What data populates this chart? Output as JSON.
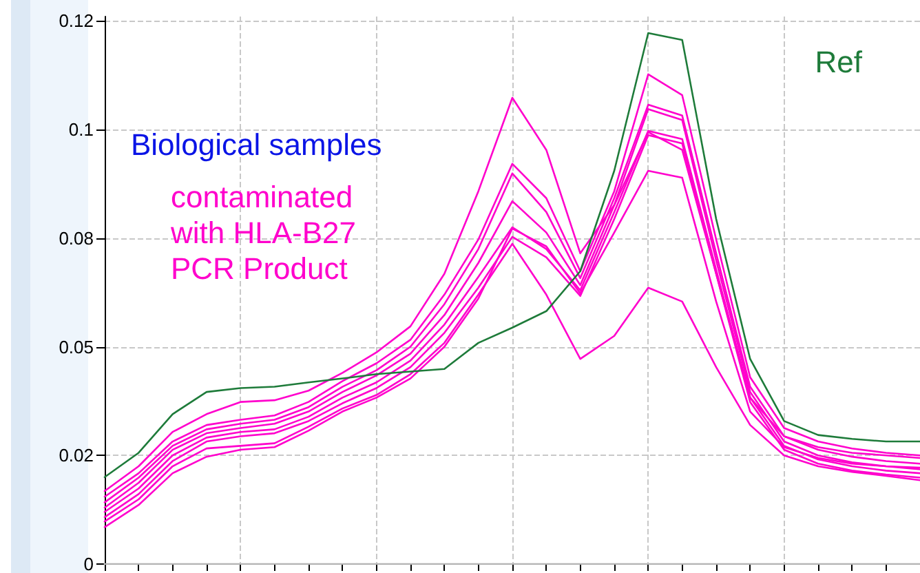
{
  "chart_data": {
    "type": "line",
    "categories": [
      null,
      null,
      null,
      null,
      null,
      null,
      null,
      null,
      null,
      null,
      null,
      null,
      null,
      null,
      null,
      null,
      null,
      null,
      null,
      null,
      null,
      null,
      null,
      null,
      null
    ],
    "series": [
      {
        "name": "Ref",
        "color": "#1e7b3a",
        "values": [
          0.02,
          0.0256,
          0.0345,
          0.0396,
          0.0405,
          0.0408,
          0.0418,
          0.0427,
          0.0437,
          0.0443,
          0.0449,
          0.0509,
          0.0544,
          0.0582,
          0.0674,
          0.0905,
          0.1222,
          0.1206,
          0.0794,
          0.0472,
          0.0329,
          0.0297,
          0.0288,
          0.0282,
          0.0282
        ]
      },
      {
        "color": "#ff00cc",
        "values": [
          0.0168,
          0.0225,
          0.0304,
          0.0345,
          0.0373,
          0.0377,
          0.0399,
          0.044,
          0.0487,
          0.0547,
          0.0668,
          0.0858,
          0.1073,
          0.0953,
          0.0715,
          0.0826,
          0.0994,
          0.0953,
          0.0668,
          0.0383,
          0.0294,
          0.0269,
          0.0256,
          0.025,
          0.0244
        ]
      },
      {
        "color": "#ff00cc",
        "values": [
          0.0155,
          0.0209,
          0.0282,
          0.032,
          0.0332,
          0.0342,
          0.0373,
          0.0421,
          0.0462,
          0.0516,
          0.062,
          0.0747,
          0.0921,
          0.0842,
          0.0674,
          0.0858,
          0.1127,
          0.1079,
          0.0747,
          0.043,
          0.0313,
          0.0282,
          0.0266,
          0.0256,
          0.025
        ]
      },
      {
        "color": "#ff00cc",
        "values": [
          0.0142,
          0.0199,
          0.0272,
          0.031,
          0.0323,
          0.0332,
          0.0361,
          0.0408,
          0.0446,
          0.05,
          0.0598,
          0.0725,
          0.0899,
          0.081,
          0.0658,
          0.0842,
          0.1057,
          0.1032,
          0.0715,
          0.0408,
          0.0294,
          0.0263,
          0.0247,
          0.0237,
          0.0231
        ]
      },
      {
        "color": "#ff00cc",
        "values": [
          0.013,
          0.0187,
          0.0263,
          0.0301,
          0.0313,
          0.0323,
          0.0351,
          0.0396,
          0.0434,
          0.0484,
          0.0573,
          0.0693,
          0.0835,
          0.0763,
          0.0642,
          0.0826,
          0.1047,
          0.1022,
          0.0699,
          0.0396,
          0.0282,
          0.025,
          0.0234,
          0.0225,
          0.0218
        ]
      },
      {
        "color": "#ff00cc",
        "values": [
          0.012,
          0.0174,
          0.025,
          0.0291,
          0.0304,
          0.031,
          0.0339,
          0.0383,
          0.0418,
          0.0468,
          0.0551,
          0.0661,
          0.0775,
          0.0725,
          0.063,
          0.081,
          0.0997,
          0.0978,
          0.0677,
          0.0383,
          0.0272,
          0.0241,
          0.0225,
          0.0215,
          0.0209
        ]
      },
      {
        "color": "#ff00cc",
        "values": [
          0.0108,
          0.0161,
          0.0237,
          0.0282,
          0.0294,
          0.0301,
          0.0329,
          0.037,
          0.0405,
          0.0453,
          0.0532,
          0.0636,
          0.0753,
          0.0706,
          0.0617,
          0.0794,
          0.0987,
          0.0968,
          0.0668,
          0.0373,
          0.0263,
          0.0231,
          0.0215,
          0.0206,
          0.0199
        ]
      },
      {
        "color": "#ff00cc",
        "values": [
          0.0098,
          0.0149,
          0.0225,
          0.0266,
          0.0272,
          0.0278,
          0.0316,
          0.0358,
          0.0389,
          0.0437,
          0.0509,
          0.062,
          0.0737,
          0.062,
          0.0472,
          0.0525,
          0.0636,
          0.0604,
          0.0453,
          0.032,
          0.025,
          0.0225,
          0.0212,
          0.0203,
          0.0193
        ]
      },
      {
        "color": "#ff00cc",
        "values": [
          0.0085,
          0.0136,
          0.0209,
          0.0247,
          0.0263,
          0.0269,
          0.0307,
          0.0351,
          0.0383,
          0.0427,
          0.05,
          0.0611,
          0.0772,
          0.0731,
          0.0623,
          0.0763,
          0.0905,
          0.0889,
          0.0604,
          0.0351,
          0.0269,
          0.0244,
          0.0231,
          0.0225,
          0.0222
        ]
      },
      {
        "color": "#b4b4b4",
        "values": [
          0,
          0,
          0,
          0,
          0,
          0,
          0,
          0,
          0,
          0,
          0,
          0,
          0,
          0,
          0,
          0,
          0,
          0,
          0,
          0,
          0,
          0,
          0,
          0,
          0
        ]
      }
    ],
    "ylim": [
      0,
      0.126
    ],
    "yticks": [
      0,
      {
        "value": 0.025,
        "label": "0.02"
      },
      {
        "value": 0.05,
        "label": "0.05"
      },
      {
        "value": 0.075,
        "label": "0.08"
      },
      {
        "value": 0.1,
        "label": "0.1"
      },
      {
        "value": 0.125,
        "label": "0.12"
      }
    ],
    "annotations": [
      "Biological samples",
      "contaminated\nwith HLA-B27\nPCR Product"
    ],
    "grid": true,
    "legend": false,
    "marker": "none",
    "line_style": "solid",
    "tick_labels": "y"
  }
}
